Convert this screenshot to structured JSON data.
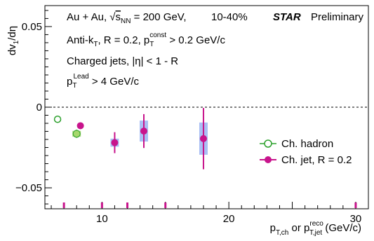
{
  "chart_data": {
    "type": "scatter",
    "ylabel": {
      "main": "dv",
      "sub": "1",
      "tail": "/dη"
    },
    "xlabel": {
      "p1": "p",
      "p1_sub": "T,ch",
      "mid": " or p",
      "p2_sup": "reco",
      "p2_sub": "T,jet",
      "tail": " (GeV/c)"
    },
    "xlim": [
      5.5,
      31.0
    ],
    "ylim": [
      -0.063,
      0.063
    ],
    "x_ticks": [
      10,
      20,
      30
    ],
    "x_tick_labels": [
      "10",
      "20",
      "30"
    ],
    "y_ticks": [
      0.05,
      0,
      -0.05
    ],
    "y_tick_labels": [
      "0.05",
      "0",
      "−0.05"
    ],
    "zero_line": true,
    "grid": false,
    "legend_position": "right",
    "annotations": {
      "line1": {
        "text_a": "Au + Au, ",
        "sqrt": "√",
        "s": "s",
        "s_sub": "NN",
        "text_b": " = 200 GeV,",
        "centrality": "10-40%",
        "star": "STAR",
        "preliminary": "Preliminary"
      },
      "line2": {
        "a": "Anti-k",
        "a_sub": "T",
        "b": ", R = 0.2, p",
        "b_sub": "T",
        "b_sup": "const",
        "c": " > 0.2 GeV/c"
      },
      "line3": {
        "text": "Charged jets, |η| < 1 - R"
      },
      "line4": {
        "a": "p",
        "a_sub": "T",
        "a_sup": "Lead",
        "b": " > 4 GeV/c"
      }
    },
    "series": [
      {
        "name": "Ch. hadron",
        "color": "#2ca02c",
        "fill": "#a6d86c",
        "points": [
          {
            "x": 6.5,
            "y": -0.0075,
            "yerr": 0.001,
            "sys": 0.0,
            "hollow": true
          },
          {
            "x": 8.0,
            "y": -0.0165,
            "yerr": 0.0025,
            "sys": 0.0018,
            "hollow": false
          }
        ]
      },
      {
        "name": "Ch. jet, R = 0.2",
        "color": "#c8148c",
        "sys_color": "#9bb4f2",
        "points": [
          {
            "x": 8.3,
            "y": -0.0115,
            "yerr": 0.0015,
            "sys": 0.0
          },
          {
            "x": 11.0,
            "y": -0.022,
            "yerr": 0.0065,
            "sys": 0.0025
          },
          {
            "x": 13.3,
            "y": -0.0148,
            "yerr": 0.0105,
            "sys": 0.0065
          },
          {
            "x": 18.0,
            "y": -0.0195,
            "yerr": 0.019,
            "sys": 0.01
          }
        ]
      }
    ],
    "bin_markers": [
      7.0,
      10.0,
      12.0,
      15.0,
      30.0
    ],
    "bin_marker_color": "#c8148c"
  }
}
